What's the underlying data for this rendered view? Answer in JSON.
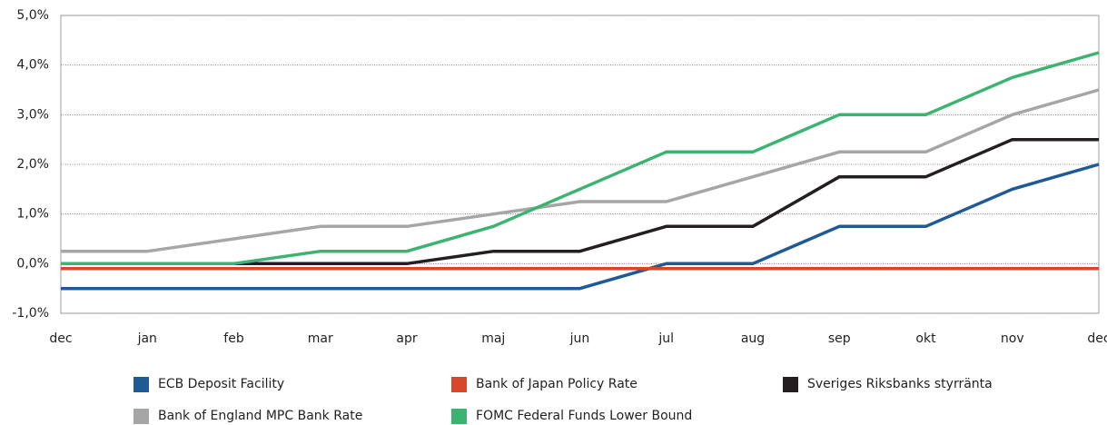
{
  "chart_data": {
    "type": "line",
    "categories": [
      "dec",
      "jan",
      "feb",
      "mar",
      "apr",
      "maj",
      "jun",
      "jul",
      "aug",
      "sep",
      "okt",
      "nov",
      "dec"
    ],
    "series": [
      {
        "name": "ECB Deposit Facility",
        "color": "#1f5a96",
        "values": [
          -0.5,
          -0.5,
          -0.5,
          -0.5,
          -0.5,
          -0.5,
          -0.5,
          0,
          0,
          0.75,
          0.75,
          1.5,
          2.0
        ]
      },
      {
        "name": "Bank of Japan Policy Rate",
        "color": "#d9472b",
        "values": [
          -0.1,
          -0.1,
          -0.1,
          -0.1,
          -0.1,
          -0.1,
          -0.1,
          -0.1,
          -0.1,
          -0.1,
          -0.1,
          -0.1,
          -0.1
        ]
      },
      {
        "name": "Sveriges Riksbanks styrränta",
        "color": "#231f20",
        "values": [
          0,
          0,
          0,
          0,
          0,
          0.25,
          0.25,
          0.75,
          0.75,
          1.75,
          1.75,
          2.5,
          2.5
        ]
      },
      {
        "name": "Bank of England MPC Bank Rate",
        "color": "#a6a6a6",
        "values": [
          0.25,
          0.25,
          0.5,
          0.75,
          0.75,
          1.0,
          1.25,
          1.25,
          1.75,
          2.25,
          2.25,
          3.0,
          3.5
        ]
      },
      {
        "name": "FOMC Federal Funds Lower Bound",
        "color": "#3cb371",
        "values": [
          0,
          0,
          0,
          0.25,
          0.25,
          0.75,
          1.5,
          2.25,
          2.25,
          3.0,
          3.0,
          3.75,
          4.25
        ]
      }
    ],
    "ylim": [
      -1,
      5
    ],
    "yticks": [
      {
        "value": -1,
        "label": "-1,0%"
      },
      {
        "value": 0,
        "label": "0,0%"
      },
      {
        "value": 1,
        "label": "1,0%"
      },
      {
        "value": 2,
        "label": "2,0%"
      },
      {
        "value": 3,
        "label": "3,0%"
      },
      {
        "value": 4,
        "label": "4,0%"
      },
      {
        "value": 5,
        "label": "5,0%"
      }
    ],
    "grid": true
  }
}
